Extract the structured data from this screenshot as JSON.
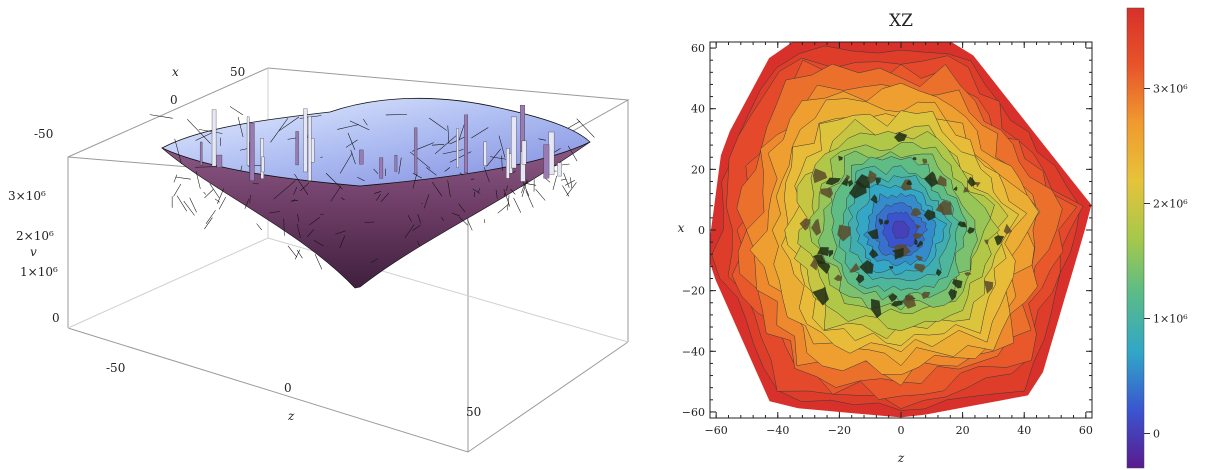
{
  "chart_data": [
    {
      "type": "surface3d",
      "title": "",
      "axes": {
        "x": {
          "label": "x",
          "ticks": [
            "-50",
            "0",
            "50"
          ]
        },
        "z": {
          "label": "z",
          "ticks": [
            "-50",
            "0",
            "50"
          ]
        },
        "v": {
          "label": "v",
          "ticks": [
            "0",
            "1×10⁶",
            "2×10⁶",
            "3×10⁶"
          ],
          "range": [
            0,
            3500000
          ]
        }
      },
      "colors": {
        "top": "#c9dcf5",
        "mid": "#9aa8e8",
        "bottom": "#5a2c52",
        "mesh": "#111111",
        "box": "#9a9a9a"
      }
    },
    {
      "type": "contour",
      "title": "XZ",
      "xlabel": "z",
      "ylabel": "x",
      "xlim": [
        -62,
        62
      ],
      "ylim": [
        -62,
        62
      ],
      "xticks": [
        "-60",
        "-40",
        "-20",
        "0",
        "20",
        "40",
        "60"
      ],
      "yticks": [
        "-60",
        "-40",
        "-20",
        "0",
        "20",
        "40",
        "60"
      ],
      "levels": 22,
      "value_range": [
        -300000,
        3700000
      ],
      "colorbar": {
        "ticks": [
          {
            "label": "0",
            "value": 0
          },
          {
            "label": "1×10⁶",
            "value": 1000000
          },
          {
            "label": "2×10⁶",
            "value": 2000000
          },
          {
            "label": "3×10⁶",
            "value": 3000000
          }
        ],
        "stops": [
          "#5a1a8f",
          "#3a55d0",
          "#31a6c8",
          "#58bb8a",
          "#a7c84a",
          "#e6c33a",
          "#f09a2f",
          "#e8542a",
          "#d8302a"
        ]
      }
    }
  ]
}
